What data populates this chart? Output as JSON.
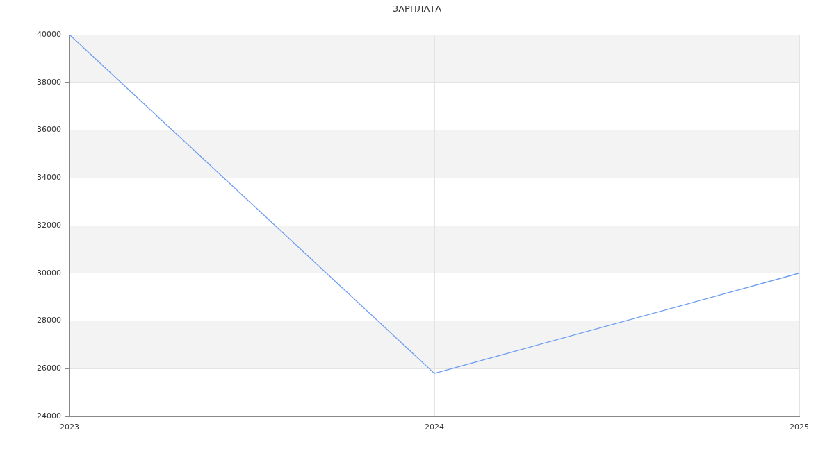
{
  "chart_data": {
    "type": "line",
    "title": "ЗАРПЛАТА",
    "categories": [
      "2023",
      "2024",
      "2025"
    ],
    "values": [
      40000,
      25800,
      30000
    ],
    "color": "#6b9bf2",
    "ylim": [
      24000,
      40000
    ],
    "yticks": [
      24000,
      26000,
      28000,
      30000,
      32000,
      34000,
      36000,
      38000,
      40000
    ],
    "grid": true,
    "marker": "none"
  }
}
